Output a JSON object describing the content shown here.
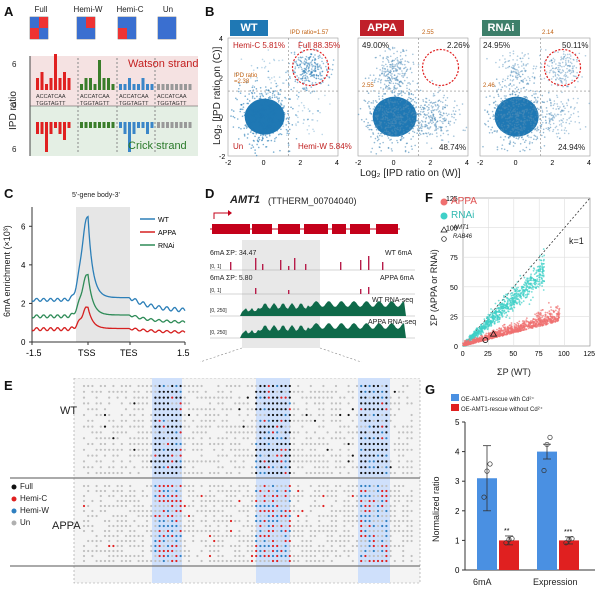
{
  "panel_labels": {
    "a": "A",
    "b": "B",
    "c": "C",
    "d": "D",
    "e": "E",
    "f": "F",
    "g": "G"
  },
  "panel_a": {
    "columns": [
      "Full",
      "Hemi-W",
      "Hemi-C",
      "Un"
    ],
    "watson_label": "Watson strand",
    "crick_label": "Crick strand",
    "ylabel": "IPD ratio",
    "ticks": [
      "6",
      "0",
      "6"
    ],
    "top_seq": "ACCATCAA",
    "bottom_seq": "TGGTAGTT",
    "colors": {
      "full": "#e02020",
      "hemi_w": "#3a7d2a",
      "hemi_c": "#3a86c8",
      "un": "#999999"
    }
  },
  "panel_b": {
    "conditions": [
      {
        "name": "WT",
        "color": "#1f78b4"
      },
      {
        "name": "APPA",
        "color": "#c0202a"
      },
      {
        "name": "RNAi",
        "color": "#3d7f6a"
      }
    ],
    "wt": {
      "hemi_c": "Hemi-C 5.81%",
      "full": "Full 88.35%",
      "ipd_top": "IPD ratio=1.57",
      "ipd_left": "IPD ratio\n=2.38",
      "un": "Un",
      "hemi_w": "Hemi-W 5.84%"
    },
    "appa": {
      "tl": "49.00%",
      "tr": "2.26%",
      "ipd_top": "2.55",
      "ipd_left": "2.55",
      "br": "48.74%"
    },
    "rnai": {
      "tl": "24.95%",
      "tr": "50.11%",
      "ipd_top": "2.14",
      "ipd_left": "2.46",
      "br": "24.94%"
    },
    "ylabel": "Log₂ [IPD ratio on (C)]",
    "xlabel": "Log₂ [IPD ratio on (W)]",
    "xticks": [
      "-2",
      "0",
      "2",
      "4"
    ],
    "yticks": [
      "4",
      "2",
      "0",
      "-2"
    ]
  },
  "panel_c": {
    "chart_data": {
      "type": "line",
      "region_label": "5'-gene body-3'",
      "ylabel": "6mA enrichment (×10³)",
      "xticks": [
        "-1.5",
        "TSS",
        "TES",
        "1.5"
      ],
      "yticks": [
        "0",
        "2",
        "4",
        "6"
      ],
      "ylim": [
        0,
        7
      ],
      "series": [
        {
          "name": "WT",
          "color": "#2c7fb8",
          "peak": 6.5,
          "base": 2.3,
          "end": 1.6
        },
        {
          "name": "APPA",
          "color": "#d62020",
          "peak": 1.8,
          "base": 0.7,
          "end": 0.5
        },
        {
          "name": "RNAi",
          "color": "#2e8b57",
          "peak": 3.5,
          "base": 1.4,
          "end": 1.0
        }
      ]
    }
  },
  "panel_d": {
    "gene": "AMT1",
    "gene_id": "(TTHERM_00704040)",
    "tracks": [
      {
        "label": "6mA ΣP: 34.47",
        "name": "WT 6mA",
        "range": "[0, 1]"
      },
      {
        "label": "6mA ΣP: 5.80",
        "name": "APPA 6mA",
        "range": "[0, 1]"
      },
      {
        "label": "",
        "name": "WT RNA-seq",
        "range": "[0, 250]"
      },
      {
        "label": "",
        "name": "APPA RNA-seq",
        "range": "[0, 250]"
      }
    ]
  },
  "panel_e": {
    "legend": [
      "Full",
      "Hemi-C",
      "Hemi-W",
      "Un"
    ],
    "legend_colors": [
      "#111111",
      "#e02020",
      "#2f7fc0",
      "#b0b0b0"
    ],
    "groups": [
      "WT",
      "APPA"
    ]
  },
  "panel_f": {
    "chart_data": {
      "type": "scatter",
      "series": [
        {
          "name": "APPA",
          "color": "#f07070"
        },
        {
          "name": "RNAi",
          "color": "#3fd0c8"
        }
      ],
      "extra_legend": [
        "AMT1",
        "RAB46"
      ],
      "diag_label": "k=1",
      "xlabel": "ΣP (WT)",
      "ylabel": "ΣP (APPA or RNAi)",
      "xticks": [
        "0",
        "25",
        "50",
        "75",
        "100",
        "125"
      ],
      "yticks": [
        "0",
        "25",
        "50",
        "75",
        "100",
        "125"
      ]
    }
  },
  "panel_g": {
    "chart_data": {
      "type": "bar",
      "categories": [
        "6mA",
        "Expression"
      ],
      "series": [
        {
          "name": "OE-AMT1-rescue with Cd²⁺",
          "color": "#4a90e2",
          "values": [
            3.1,
            4.0
          ]
        },
        {
          "name": "OE-AMT1-rescue without Cd²⁺",
          "color": "#e02020",
          "values": [
            1.0,
            1.0
          ]
        }
      ],
      "ylabel": "Normalized ratio",
      "ylim": [
        0,
        5
      ],
      "yticks": [
        "0",
        "1",
        "2",
        "3",
        "4",
        "5"
      ],
      "sig": [
        "**",
        "***"
      ]
    }
  }
}
